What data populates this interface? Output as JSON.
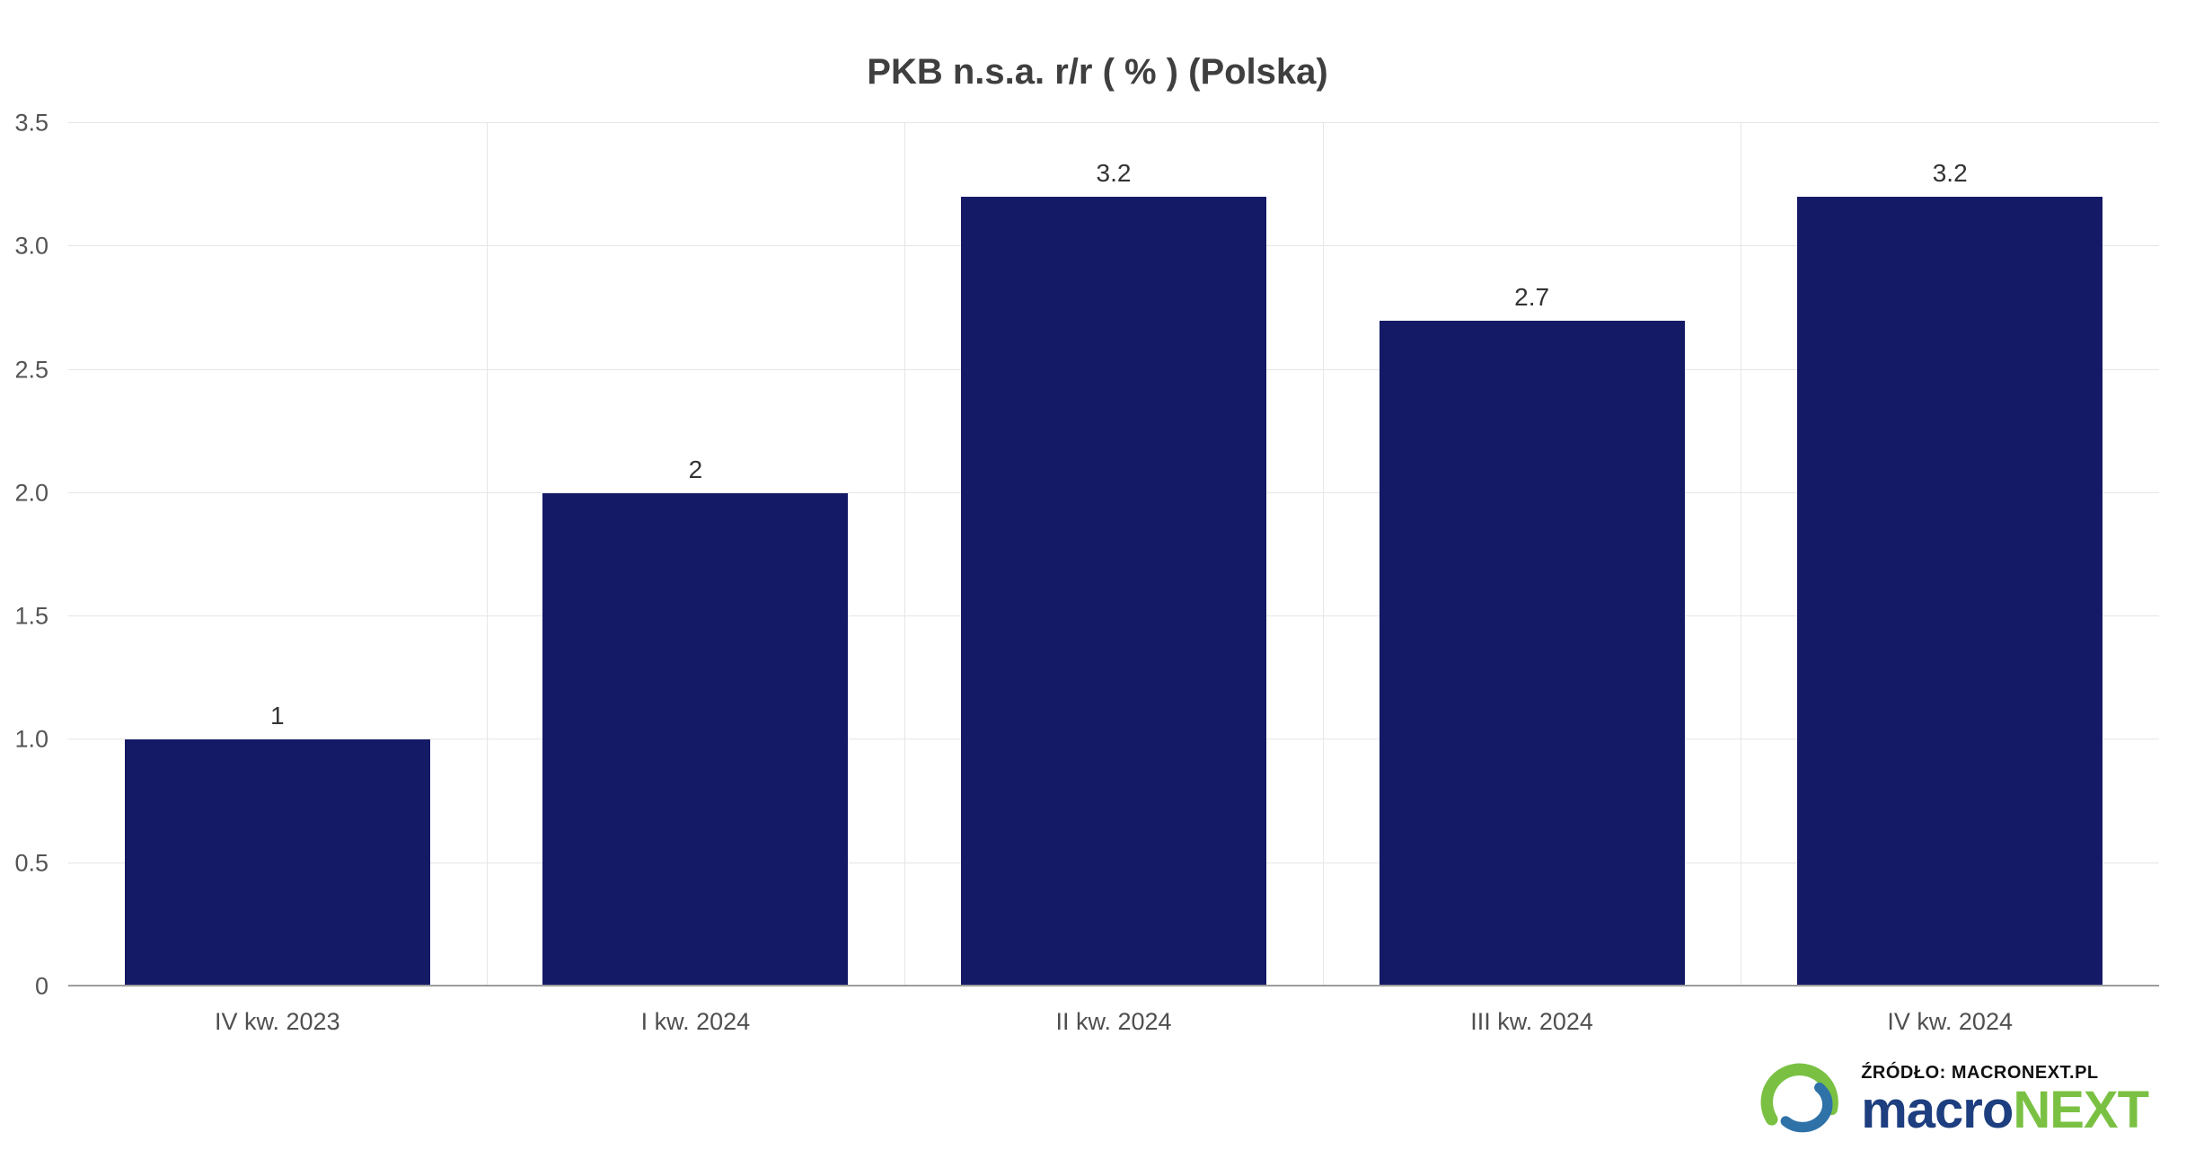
{
  "chart_data": {
    "type": "bar",
    "title": "PKB n.s.a. r/r ( % ) (Polska)",
    "categories": [
      "IV kw. 2023",
      "I kw. 2024",
      "II kw. 2024",
      "III kw. 2024",
      "IV kw. 2024"
    ],
    "values": [
      1,
      2,
      3.2,
      2.7,
      3.2
    ],
    "data_labels": [
      "1",
      "2",
      "3.2",
      "2.7",
      "3.2"
    ],
    "xlabel": "",
    "ylabel": "",
    "ylim": [
      0,
      3.5
    ],
    "yticks": [
      0,
      0.5,
      1,
      1.5,
      2,
      2.5,
      3,
      3.5
    ],
    "ytick_labels": [
      "0",
      "0.5",
      "1.0",
      "1.5",
      "2.0",
      "2.5",
      "3.0",
      "3.5"
    ],
    "grid": true,
    "legend": false,
    "bar_color": "#141a66",
    "bar_width_fraction": 0.73
  },
  "source": {
    "label": "ŹRÓDŁO: MACRONEXT.PL",
    "logo_macro": "macro",
    "logo_next": "NEXT"
  },
  "icons": {
    "logo": "macronext-globe-swoosh-icon"
  },
  "colors": {
    "bar": "#141a66",
    "title_text": "#3f3f3f",
    "axis_label": "#545454",
    "gridline": "#e6e6e6",
    "axis_line": "#9d9d9d",
    "logo_blue": "#1d3e7f",
    "logo_green": "#7ac143",
    "logo_icon_blue": "#2e72a8"
  }
}
